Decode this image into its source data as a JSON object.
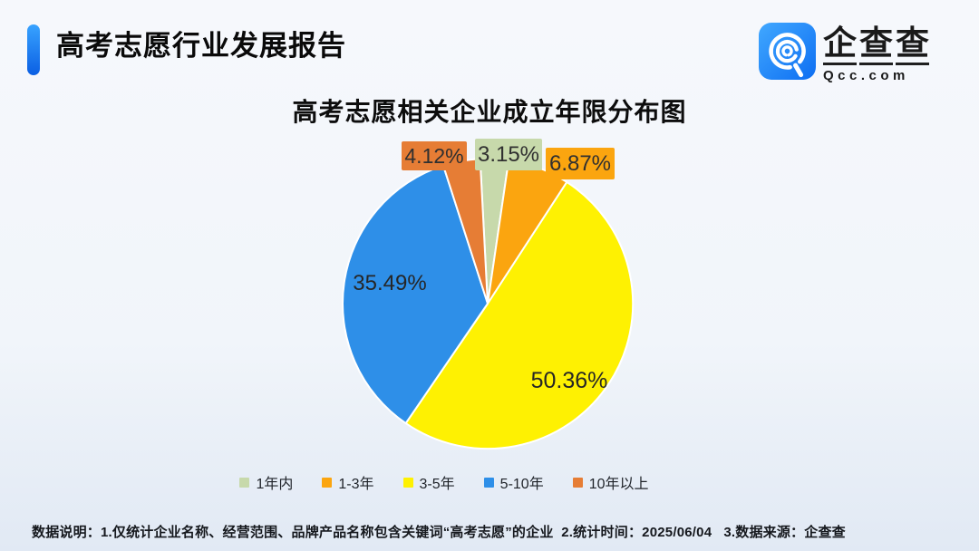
{
  "header": {
    "report_title": "高考志愿行业发展报告"
  },
  "logo": {
    "name": "企查查",
    "domain": "Qcc.com",
    "icon_color": "#1D7FF2"
  },
  "chart_data": {
    "type": "pie",
    "title": "高考志愿相关企业成立年限分布图",
    "categories": [
      "1年内",
      "1-3年",
      "3-5年",
      "5-10年",
      "10年以上"
    ],
    "values": [
      3.15,
      6.87,
      50.36,
      35.49,
      4.12
    ],
    "labels": [
      "3.15%",
      "6.87%",
      "50.36%",
      "35.49%",
      "4.12%"
    ],
    "colors": [
      "#C7D9AB",
      "#FBA50F",
      "#FEF102",
      "#2E8FE8",
      "#E67D35"
    ],
    "unit": "%",
    "legend_position": "bottom",
    "start_angle_deg": -3,
    "clockwise": true
  },
  "footer": {
    "note": "数据说明：1.仅统计企业名称、经营范围、品牌产品名称包含关键词“高考志愿”的企业  2.统计时间：2025/06/04   3.数据来源：企查查"
  }
}
